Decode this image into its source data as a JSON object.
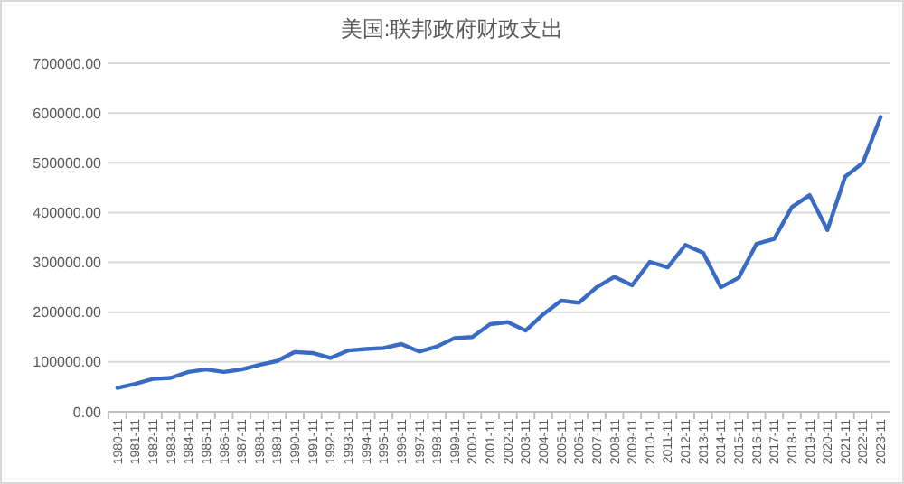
{
  "chart_data": {
    "type": "line",
    "title": "美国:联邦政府财政支出",
    "categories": [
      "1980-11",
      "1981-11",
      "1982-11",
      "1983-11",
      "1984-11",
      "1985-11",
      "1986-11",
      "1987-11",
      "1988-11",
      "1989-11",
      "1990-11",
      "1991-11",
      "1992-11",
      "1993-11",
      "1994-11",
      "1995-11",
      "1996-11",
      "1997-11",
      "1998-11",
      "1999-11",
      "2000-11",
      "2001-11",
      "2002-11",
      "2003-11",
      "2004-11",
      "2005-11",
      "2006-11",
      "2007-11",
      "2008-11",
      "2009-11",
      "2010-11",
      "2011-11",
      "2012-11",
      "2013-11",
      "2014-11",
      "2015-11",
      "2016-11",
      "2017-11",
      "2018-11",
      "2019-11",
      "2020-11",
      "2021-11",
      "2022-11",
      "2023-11"
    ],
    "series": [
      {
        "color": "#3a6bc4",
        "values": [
          48000,
          56000,
          66000,
          68000,
          80000,
          85000,
          80000,
          85000,
          94000,
          102000,
          120000,
          118000,
          108000,
          123000,
          126000,
          128000,
          136000,
          121000,
          131000,
          148000,
          150000,
          176000,
          180000,
          163000,
          196000,
          223000,
          219000,
          250000,
          271000,
          254000,
          301000,
          290000,
          335000,
          319000,
          250000,
          269000,
          337000,
          347000,
          411000,
          435000,
          365000,
          472000,
          500000,
          592000
        ]
      }
    ],
    "ylim": [
      0,
      700000
    ],
    "yticks": [
      {
        "value": 0,
        "label": "0.00"
      },
      {
        "value": 100000,
        "label": "100000.00"
      },
      {
        "value": 200000,
        "label": "200000.00"
      },
      {
        "value": 300000,
        "label": "300000.00"
      },
      {
        "value": 400000,
        "label": "400000.00"
      },
      {
        "value": 500000,
        "label": "500000.00"
      },
      {
        "value": 600000,
        "label": "600000.00"
      },
      {
        "value": 700000,
        "label": "700000.00"
      }
    ],
    "grid": "y",
    "marker": "none",
    "line_style": "solid"
  }
}
